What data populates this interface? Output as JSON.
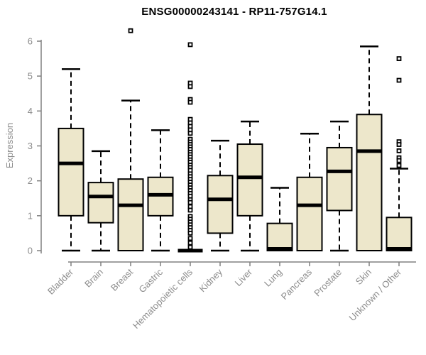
{
  "title": "ENSG00000243141 - RP11-757G14.1",
  "style": {
    "background": "#ffffff",
    "box_fill": "#EDE7CB",
    "box_stroke": "#000000",
    "median_color": "#000000",
    "whisker_color": "#000000",
    "outlier_stroke": "#000000",
    "outlier_fill": "#ffffff",
    "axis_color": "#808080",
    "tick_label_color": "#8c8c8c",
    "title_color": "#000000"
  },
  "chart_data": {
    "type": "boxplot",
    "title": "ENSG00000243141 - RP11-757G14.1",
    "xlabel": "",
    "ylabel": "Expression",
    "ylim": [
      0,
      6
    ],
    "yticks": [
      0,
      1,
      2,
      3,
      4,
      5,
      6
    ],
    "grid": false,
    "legend": "none",
    "categories": [
      "Bladder",
      "Brain",
      "Breast",
      "Gastric",
      "Hematopoietic cells",
      "Kidney",
      "Liver",
      "Lung",
      "Pancreas",
      "Prostate",
      "Skin",
      "Unknown / Other"
    ],
    "series": [
      {
        "name": "Bladder",
        "min": 0,
        "q1": 1.0,
        "median": 2.5,
        "q3": 3.5,
        "max": 5.2,
        "outliers": []
      },
      {
        "name": "Brain",
        "min": 0,
        "q1": 0.8,
        "median": 1.55,
        "q3": 1.95,
        "max": 2.85,
        "outliers": []
      },
      {
        "name": "Breast",
        "min": 0,
        "q1": 0,
        "median": 1.3,
        "q3": 2.05,
        "max": 4.3,
        "outliers": [
          6.3
        ]
      },
      {
        "name": "Gastric",
        "min": 0,
        "q1": 1.0,
        "median": 1.6,
        "q3": 2.1,
        "max": 3.45,
        "outliers": []
      },
      {
        "name": "Hematopoietic cells",
        "min": 0,
        "q1": 0,
        "median": 0,
        "q3": 0,
        "max": 0,
        "outliers": [
          5.9,
          4.8,
          4.7,
          4.33,
          4.25,
          3.76,
          3.66,
          3.56,
          3.46,
          3.36,
          3.19,
          3.11,
          3.04,
          2.97,
          2.9,
          2.82,
          2.75,
          2.68,
          2.6,
          2.53,
          2.45,
          2.38,
          2.3,
          2.2,
          2.12,
          2.04,
          1.96,
          1.88,
          1.8,
          1.72,
          1.64,
          1.56,
          1.46,
          1.38,
          1.26,
          1.16,
          0.98,
          0.9,
          0.82,
          0.74,
          0.66,
          0.58,
          0.5,
          0.35,
          0.22,
          0.1
        ]
      },
      {
        "name": "Kidney",
        "min": 0,
        "q1": 0.5,
        "median": 1.47,
        "q3": 2.15,
        "max": 3.15,
        "outliers": []
      },
      {
        "name": "Liver",
        "min": 0,
        "q1": 1.0,
        "median": 2.1,
        "q3": 3.05,
        "max": 3.7,
        "outliers": []
      },
      {
        "name": "Lung",
        "min": 0,
        "q1": 0,
        "median": 0.05,
        "q3": 0.78,
        "max": 1.8,
        "outliers": []
      },
      {
        "name": "Pancreas",
        "min": 0,
        "q1": 0,
        "median": 1.3,
        "q3": 2.1,
        "max": 3.35,
        "outliers": []
      },
      {
        "name": "Prostate",
        "min": 0,
        "q1": 1.15,
        "median": 2.27,
        "q3": 2.95,
        "max": 3.7,
        "outliers": []
      },
      {
        "name": "Skin",
        "min": 0,
        "q1": 0,
        "median": 2.85,
        "q3": 3.9,
        "max": 5.85,
        "outliers": []
      },
      {
        "name": "Unknown / Other",
        "min": 0,
        "q1": 0,
        "median": 0.05,
        "q3": 0.95,
        "max": 2.35,
        "outliers": [
          5.5,
          4.88,
          3.12,
          3.04,
          2.86,
          2.66,
          2.58,
          2.44
        ]
      }
    ]
  }
}
